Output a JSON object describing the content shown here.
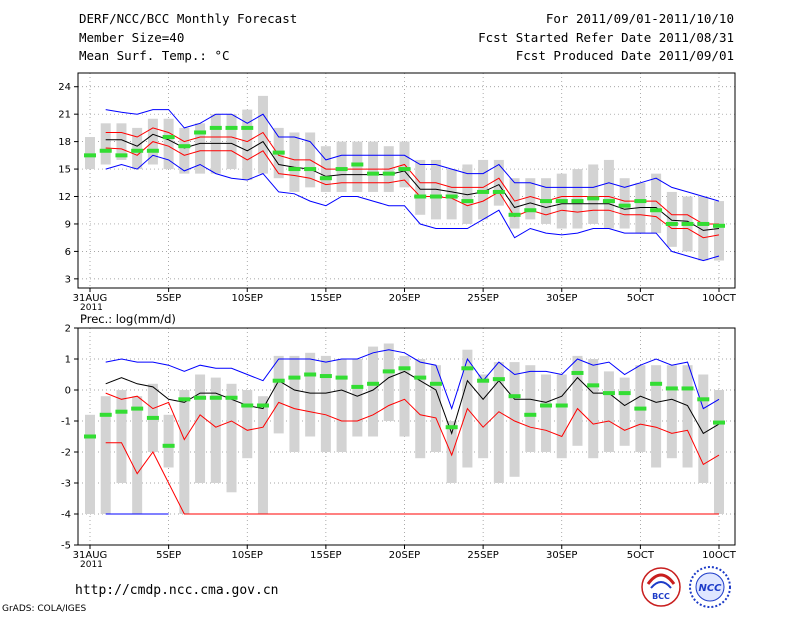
{
  "header": {
    "title": "DERF/NCC/BCC Monthly Forecast",
    "member": "Member Size=40",
    "variable": "Mean Surf. Temp.: °C",
    "period": "For 2011/09/01-2011/10/10",
    "started": "Fcst Started Refer Date 2011/08/31",
    "produced": "Fcst Produced Date 2011/09/01"
  },
  "footer": {
    "url": "http://cmdp.ncc.cma.gov.cn",
    "credit": "GrADS: COLA/IGES",
    "logo_bcc": "BCC",
    "logo_ncc": "NCC"
  },
  "colors": {
    "max_line": "#0000ff",
    "min_line": "#ff0000",
    "mean_line": "#000000",
    "marker": "#33dd33",
    "bar": "#d3d3d3"
  },
  "chart_data": [
    {
      "type": "line",
      "title": "Mean Surf. Temp.: °C",
      "x_count": 41,
      "xticks": [
        {
          "i": 0,
          "label": "31AUG",
          "sub": "2011"
        },
        {
          "i": 5,
          "label": "5SEP"
        },
        {
          "i": 10,
          "label": "10SEP"
        },
        {
          "i": 15,
          "label": "15SEP"
        },
        {
          "i": 20,
          "label": "20SEP"
        },
        {
          "i": 25,
          "label": "25SEP"
        },
        {
          "i": 30,
          "label": "30SEP"
        },
        {
          "i": 35,
          "label": "5OCT"
        },
        {
          "i": 40,
          "label": "10OCT"
        }
      ],
      "yticks": [
        3,
        6,
        9,
        12,
        15,
        18,
        21,
        24
      ],
      "ylim": [
        2,
        25.5
      ],
      "series": [
        {
          "name": "max",
          "color": "#0000ff",
          "values": [
            null,
            21.5,
            21.2,
            21.0,
            21.5,
            21.5,
            19.5,
            20.0,
            21.0,
            21.0,
            20.0,
            21.0,
            18.5,
            18.5,
            18.0,
            16.0,
            16.5,
            16.5,
            16.5,
            16.5,
            16.5,
            15.5,
            15.5,
            15.0,
            14.5,
            14.5,
            15.5,
            13.5,
            13.5,
            13.0,
            13.0,
            13.0,
            13.0,
            13.5,
            13.0,
            13.5,
            14.0,
            13.0,
            12.5,
            12.0,
            11.5
          ]
        },
        {
          "name": "upper",
          "color": "#ff0000",
          "values": [
            null,
            19.0,
            19.0,
            18.5,
            19.5,
            19.0,
            18.0,
            18.5,
            18.5,
            18.5,
            18.0,
            19.0,
            16.5,
            16.0,
            16.0,
            15.0,
            15.0,
            15.0,
            15.0,
            15.0,
            15.5,
            13.5,
            13.5,
            13.0,
            13.0,
            13.0,
            14.0,
            11.5,
            12.0,
            11.5,
            12.0,
            12.0,
            12.0,
            12.0,
            11.5,
            11.5,
            11.5,
            10.0,
            10.0,
            9.0,
            9.0
          ]
        },
        {
          "name": "mean",
          "color": "#000000",
          "values": [
            null,
            18.2,
            18.2,
            17.5,
            18.8,
            18.2,
            17.3,
            17.8,
            17.8,
            17.8,
            17.0,
            18.0,
            15.5,
            15.2,
            15.0,
            14.2,
            14.4,
            14.4,
            14.4,
            14.4,
            14.8,
            12.8,
            12.8,
            12.5,
            12.2,
            12.5,
            13.3,
            10.8,
            11.3,
            10.8,
            11.2,
            11.2,
            11.2,
            11.2,
            10.6,
            10.8,
            10.8,
            9.4,
            9.3,
            8.3,
            8.5
          ]
        },
        {
          "name": "lower",
          "color": "#ff0000",
          "values": [
            null,
            17.3,
            17.2,
            16.5,
            18.0,
            17.5,
            16.5,
            17.0,
            17.0,
            17.0,
            16.0,
            17.0,
            14.5,
            14.3,
            14.0,
            13.3,
            13.5,
            13.5,
            13.5,
            13.5,
            13.8,
            12.0,
            12.0,
            11.8,
            11.0,
            11.5,
            12.5,
            9.8,
            10.5,
            10.0,
            10.5,
            10.3,
            10.5,
            10.5,
            10.0,
            10.0,
            9.8,
            8.5,
            8.5,
            7.5,
            7.8
          ]
        },
        {
          "name": "min",
          "color": "#0000ff",
          "values": [
            null,
            15.0,
            15.5,
            15.0,
            16.5,
            16.0,
            14.8,
            15.5,
            14.5,
            14.0,
            13.8,
            14.5,
            12.5,
            12.3,
            11.5,
            11.0,
            12.0,
            12.0,
            11.5,
            11.0,
            11.0,
            9.0,
            8.5,
            8.5,
            8.5,
            9.5,
            10.5,
            7.5,
            8.5,
            8.0,
            7.8,
            8.0,
            8.5,
            8.5,
            8.0,
            8.0,
            8.0,
            6.0,
            5.5,
            5.0,
            5.5
          ]
        }
      ],
      "boxes_lo": [
        15.0,
        15.5,
        16.0,
        15.0,
        15.5,
        15.0,
        14.5,
        14.5,
        14.5,
        15.0,
        13.8,
        14.5,
        14.0,
        12.5,
        13.0,
        12.5,
        12.5,
        12.5,
        12.5,
        12.5,
        13.0,
        10.0,
        9.5,
        9.5,
        9.0,
        9.5,
        11.0,
        8.5,
        9.5,
        9.0,
        8.5,
        8.5,
        9.0,
        8.5,
        8.5,
        8.0,
        8.0,
        6.5,
        6.0,
        5.0,
        5.0
      ],
      "boxes_hi": [
        18.5,
        20.0,
        20.0,
        19.5,
        20.5,
        20.5,
        19.5,
        20.0,
        21.0,
        21.0,
        21.5,
        23.0,
        19.5,
        19.0,
        19.0,
        17.5,
        18.0,
        18.0,
        18.0,
        17.5,
        18.0,
        16.0,
        16.0,
        15.0,
        15.5,
        16.0,
        16.0,
        14.0,
        14.0,
        14.0,
        14.5,
        15.0,
        15.5,
        16.0,
        14.0,
        13.5,
        14.5,
        12.5,
        12.0,
        12.0,
        11.5
      ],
      "markers": [
        16.5,
        17.0,
        16.5,
        17.0,
        17.0,
        18.5,
        17.5,
        19.0,
        19.5,
        19.5,
        19.5,
        null,
        16.8,
        15.0,
        15.0,
        14.0,
        15.0,
        15.5,
        14.5,
        14.5,
        15.0,
        12.0,
        12.0,
        12.0,
        11.5,
        12.5,
        12.5,
        10.0,
        10.5,
        11.5,
        11.5,
        11.5,
        11.8,
        11.5,
        11.0,
        11.5,
        10.5,
        9.0,
        9.0,
        9.0,
        8.8
      ]
    },
    {
      "type": "line",
      "title": "Prec.: log(mm/d)",
      "x_count": 41,
      "xticks": [
        {
          "i": 0,
          "label": "31AUG",
          "sub": "2011"
        },
        {
          "i": 5,
          "label": "5SEP"
        },
        {
          "i": 10,
          "label": "10SEP"
        },
        {
          "i": 15,
          "label": "15SEP"
        },
        {
          "i": 20,
          "label": "20SEP"
        },
        {
          "i": 25,
          "label": "25SEP"
        },
        {
          "i": 30,
          "label": "30SEP"
        },
        {
          "i": 35,
          "label": "5OCT"
        },
        {
          "i": 40,
          "label": "10OCT"
        }
      ],
      "yticks": [
        -5,
        -4,
        -3,
        -2,
        -1,
        0,
        1,
        2
      ],
      "ylim": [
        -5,
        2
      ],
      "series": [
        {
          "name": "max",
          "color": "#0000ff",
          "values": [
            null,
            0.9,
            1.0,
            0.9,
            0.9,
            0.8,
            0.6,
            0.8,
            0.7,
            0.7,
            0.5,
            0.3,
            1.0,
            1.0,
            1.0,
            0.9,
            1.0,
            1.0,
            1.2,
            1.3,
            1.2,
            0.9,
            0.8,
            -0.6,
            1.0,
            0.3,
            0.9,
            0.5,
            0.6,
            0.6,
            0.5,
            1.0,
            0.8,
            0.9,
            0.5,
            0.8,
            1.0,
            0.8,
            0.9,
            -0.6,
            -0.3
          ]
        },
        {
          "name": "mean",
          "color": "#000000",
          "values": [
            null,
            0.2,
            0.4,
            0.2,
            0.1,
            -0.3,
            -0.4,
            -0.1,
            -0.1,
            -0.3,
            -0.5,
            -0.6,
            0.3,
            0.0,
            -0.1,
            -0.1,
            0.0,
            -0.2,
            0.0,
            0.4,
            0.6,
            0.3,
            0.0,
            -1.4,
            0.3,
            -0.3,
            0.3,
            -0.3,
            -0.3,
            -0.4,
            -0.2,
            0.4,
            -0.1,
            -0.1,
            -0.5,
            -0.2,
            -0.4,
            -0.3,
            -0.5,
            -1.4,
            -1.1
          ]
        },
        {
          "name": "lower",
          "color": "#ff0000",
          "values": [
            null,
            -1.7,
            -1.7,
            -2.7,
            -2.0,
            -3.0,
            -4.0,
            -4.0,
            -4.0,
            -4.0,
            -4.0,
            -4.0,
            -4.0,
            -4.0,
            -4.0,
            -4.0,
            -4.0,
            -4.0,
            -4.0,
            -4.0,
            -4.0,
            -4.0,
            -4.0,
            -4.0,
            -4.0,
            -4.0,
            -4.0,
            -4.0,
            -4.0,
            -4.0,
            -4.0,
            -4.0,
            -4.0,
            -4.0,
            -4.0,
            -4.0,
            -4.0,
            -4.0,
            -4.0,
            -4.0,
            -4.0
          ]
        },
        {
          "name": "upper",
          "color": "#ff0000",
          "values": [
            null,
            -0.1,
            -0.3,
            -0.2,
            -0.6,
            -0.4,
            -1.6,
            -0.8,
            -1.2,
            -1.0,
            -1.3,
            -1.2,
            -0.4,
            -0.6,
            -0.7,
            -0.8,
            -1.0,
            -1.0,
            -0.8,
            -0.5,
            -0.3,
            -0.8,
            -0.9,
            -2.1,
            -0.6,
            -1.2,
            -0.7,
            -1.0,
            -1.2,
            -1.3,
            -1.5,
            -0.6,
            -1.1,
            -1.0,
            -1.3,
            -1.1,
            -1.2,
            -1.4,
            -1.3,
            -2.4,
            -2.1
          ]
        },
        {
          "name": "floor",
          "color": "#0000ff",
          "values": [
            null,
            -4.0,
            -4.0,
            -4.0,
            -4.0,
            -4.0,
            null,
            null,
            null,
            null,
            null,
            null,
            null,
            null,
            null,
            null,
            null,
            null,
            null,
            null,
            null,
            null,
            null,
            null,
            null,
            null,
            null,
            null,
            null,
            null,
            null,
            null,
            null,
            null,
            null,
            null,
            null,
            null,
            null,
            null,
            null
          ]
        }
      ],
      "boxes_lo": [
        -4.0,
        -4.0,
        -3.0,
        -4.0,
        -2.0,
        -2.5,
        -4.0,
        -3.0,
        -3.0,
        -3.3,
        -2.2,
        -4.0,
        -1.4,
        -2.0,
        -1.5,
        -2.0,
        -2.0,
        -1.5,
        -1.5,
        -1.0,
        -1.5,
        -2.2,
        -2.0,
        -3.0,
        -2.5,
        -2.2,
        -3.0,
        -2.8,
        -2.0,
        -2.0,
        -2.2,
        -1.8,
        -2.2,
        -2.0,
        -1.8,
        -2.0,
        -2.5,
        -2.2,
        -2.5,
        -3.0,
        -4.0
      ],
      "boxes_hi": [
        -0.8,
        -0.2,
        0.0,
        -0.2,
        0.2,
        -0.8,
        0.0,
        0.5,
        0.4,
        0.2,
        0.0,
        -0.2,
        1.1,
        1.1,
        1.2,
        1.1,
        1.0,
        1.0,
        1.4,
        1.5,
        1.1,
        1.0,
        0.8,
        -1.0,
        1.3,
        0.5,
        0.9,
        0.9,
        0.8,
        0.5,
        0.5,
        1.1,
        1.0,
        0.6,
        0.4,
        0.8,
        0.8,
        0.8,
        0.8,
        0.5,
        0.0
      ],
      "markers": [
        -1.5,
        -0.8,
        -0.7,
        -0.6,
        -0.9,
        -1.8,
        -0.3,
        -0.25,
        -0.25,
        -0.25,
        -0.5,
        -0.5,
        0.3,
        0.4,
        0.5,
        0.45,
        0.4,
        0.1,
        0.2,
        0.6,
        0.7,
        0.4,
        0.2,
        -1.2,
        0.7,
        0.3,
        0.35,
        -0.2,
        -0.8,
        -0.5,
        -0.5,
        0.55,
        0.15,
        -0.1,
        -0.1,
        -0.6,
        0.2,
        0.05,
        0.05,
        -0.3,
        -1.05
      ]
    }
  ]
}
